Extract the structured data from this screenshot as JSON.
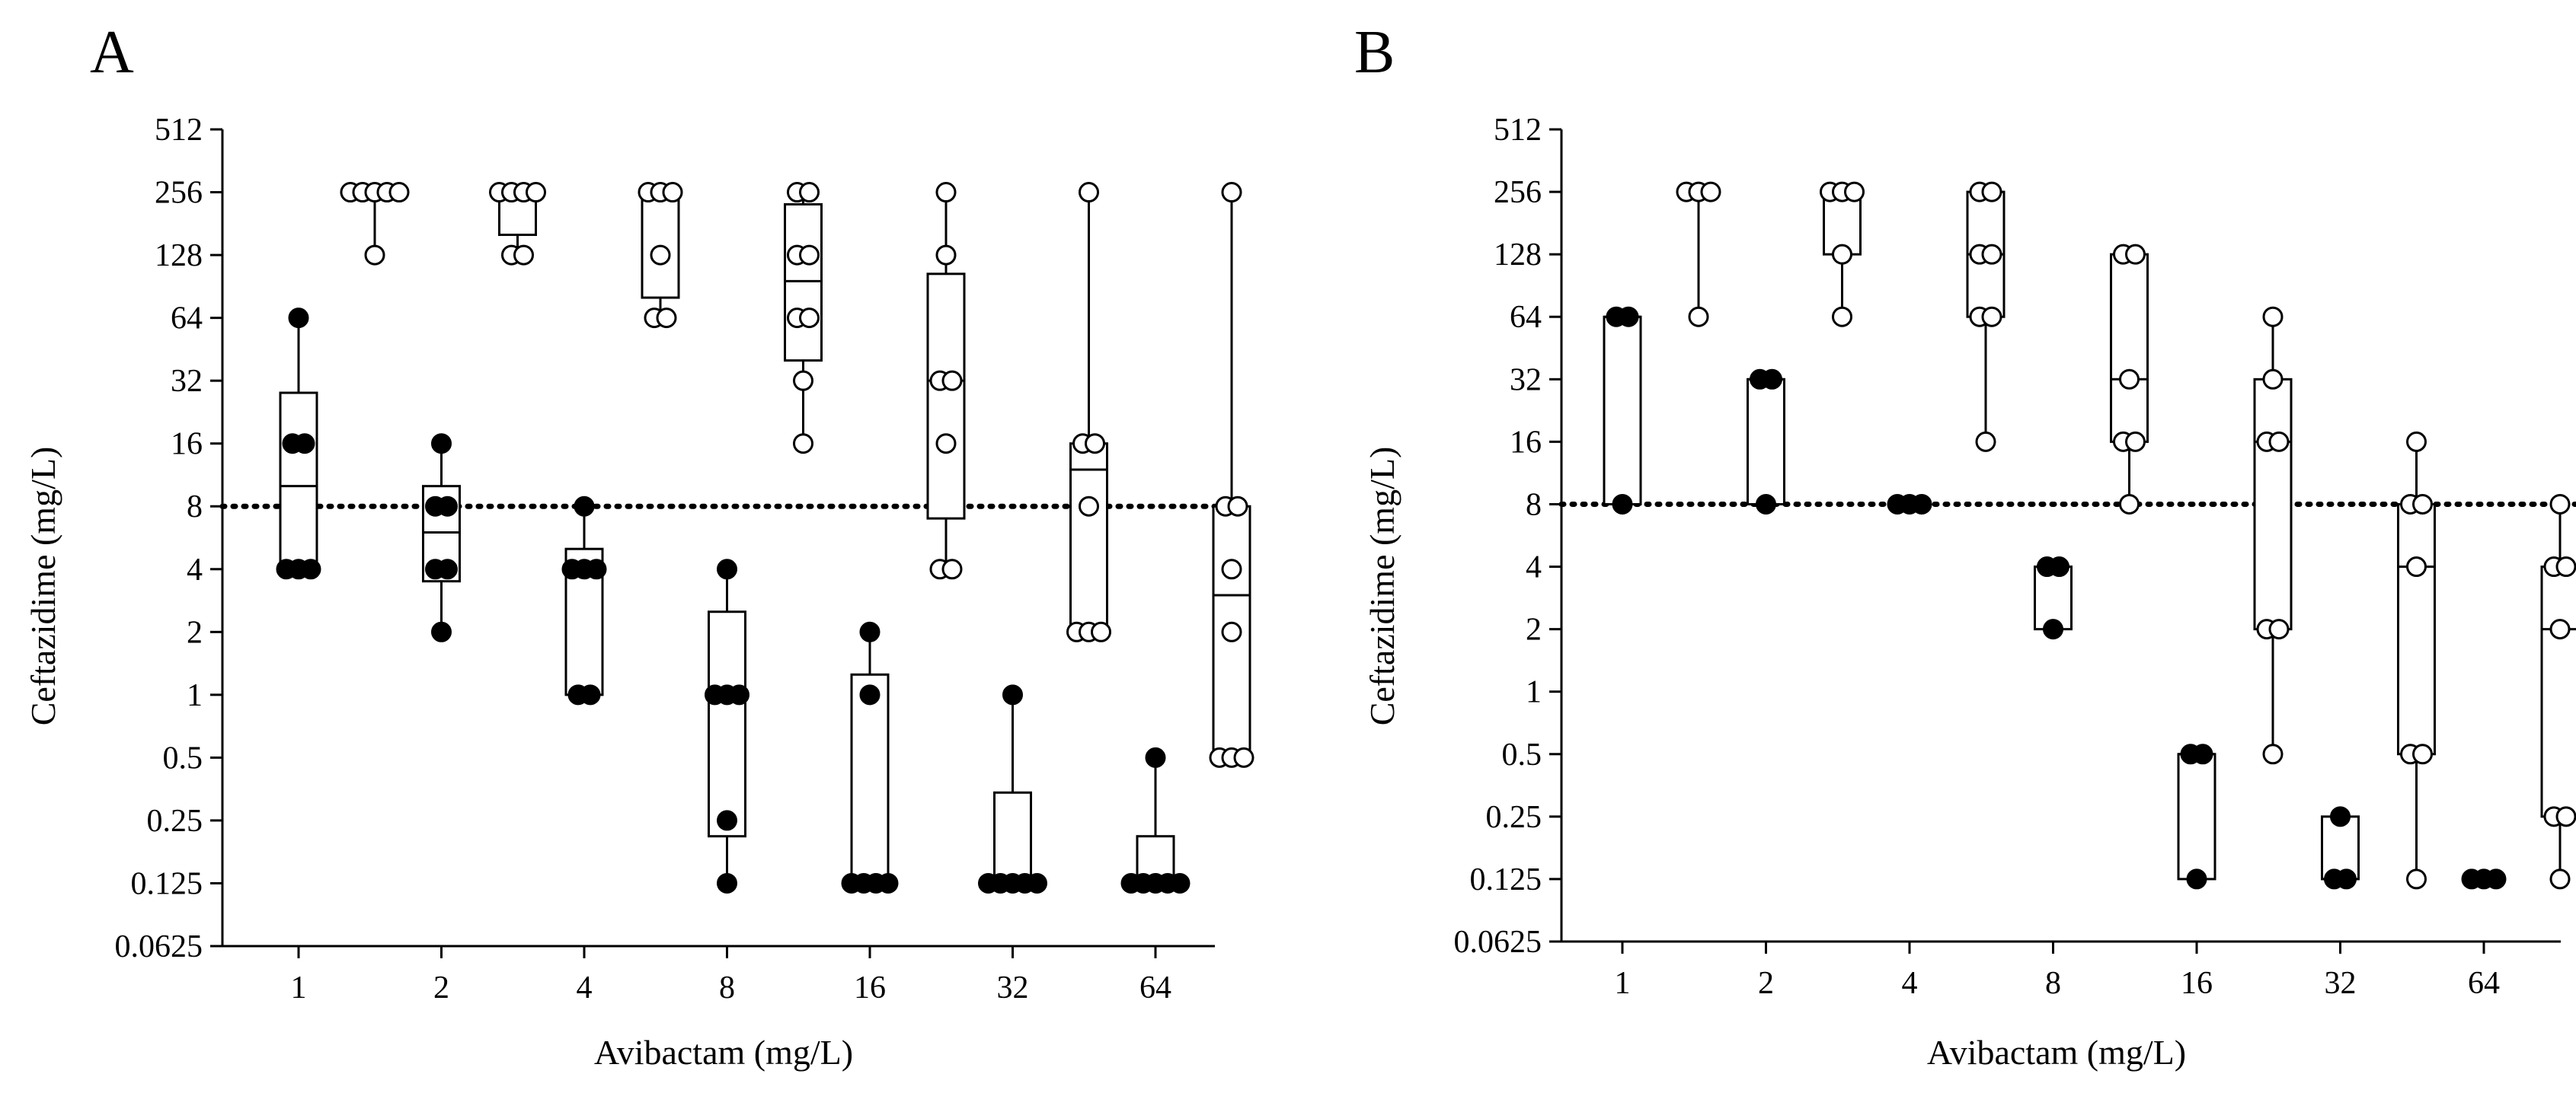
{
  "figure": {
    "dotted_line_value": 8,
    "colors": {
      "axis": "#000000",
      "filled_marker": "#000000",
      "open_marker": "#ffffff",
      "box": "#ffffff"
    }
  },
  "chart_data": [
    {
      "panel": "A",
      "type": "box",
      "xlabel": "Avibactam (mg/L)",
      "ylabel": "Ceftazidime (mg/L)",
      "y_scale": "log2",
      "ylim": [
        0.0625,
        512
      ],
      "y_ticks": [
        "512",
        "256",
        "128",
        "64",
        "32",
        "16",
        "8",
        "4",
        "2",
        "1",
        "0.5",
        "0.25",
        "0.125",
        "0.0625"
      ],
      "y_tick_values": [
        512,
        256,
        128,
        64,
        32,
        16,
        8,
        4,
        2,
        1,
        0.5,
        0.25,
        0.125,
        0.0625
      ],
      "categories": [
        "1",
        "2",
        "4",
        "8",
        "16",
        "32",
        "64"
      ],
      "reference_line": 8,
      "series": [
        {
          "name": "filled",
          "marker": "filled-circle",
          "groups": [
            {
              "category": "1",
              "box": {
                "min": 4,
                "q1": 4,
                "median": 10,
                "q3": 28,
                "max": 64
              },
              "points": [
                64,
                16,
                16,
                4,
                4,
                4
              ]
            },
            {
              "category": "2",
              "box": {
                "min": 2,
                "q1": 3.5,
                "median": 6,
                "q3": 10,
                "max": 16
              },
              "points": [
                16,
                8,
                8,
                4,
                4,
                2
              ]
            },
            {
              "category": "4",
              "box": {
                "min": 1,
                "q1": 1,
                "median": 4,
                "q3": 5,
                "max": 8
              },
              "points": [
                8,
                4,
                4,
                4,
                1,
                1
              ]
            },
            {
              "category": "8",
              "box": {
                "min": 0.125,
                "q1": 0.21,
                "median": 1,
                "q3": 2.5,
                "max": 4
              },
              "points": [
                4,
                1,
                1,
                1,
                0.25,
                0.125
              ]
            },
            {
              "category": "16",
              "box": {
                "min": 0.125,
                "q1": 0.125,
                "median": 0.125,
                "q3": 1.25,
                "max": 2
              },
              "points": [
                2,
                1,
                0.125,
                0.125,
                0.125,
                0.125
              ]
            },
            {
              "category": "32",
              "box": {
                "min": 0.125,
                "q1": 0.125,
                "median": 0.125,
                "q3": 0.34,
                "max": 1
              },
              "points": [
                1,
                0.125,
                0.125,
                0.125,
                0.125,
                0.125
              ]
            },
            {
              "category": "64",
              "box": {
                "min": 0.125,
                "q1": 0.125,
                "median": 0.125,
                "q3": 0.21,
                "max": 0.5
              },
              "points": [
                0.5,
                0.125,
                0.125,
                0.125,
                0.125,
                0.125
              ]
            }
          ]
        },
        {
          "name": "open",
          "marker": "open-circle",
          "groups": [
            {
              "category": "1",
              "box": {
                "min": 128,
                "q1": 256,
                "median": 256,
                "q3": 256,
                "max": 256
              },
              "points": [
                256,
                256,
                256,
                256,
                256,
                128
              ]
            },
            {
              "category": "2",
              "box": {
                "min": 128,
                "q1": 160,
                "median": 256,
                "q3": 256,
                "max": 256
              },
              "points": [
                256,
                256,
                256,
                256,
                128,
                128
              ]
            },
            {
              "category": "4",
              "box": {
                "min": 64,
                "q1": 80,
                "median": 256,
                "q3": 256,
                "max": 256
              },
              "points": [
                256,
                256,
                256,
                128,
                64,
                64
              ]
            },
            {
              "category": "8",
              "box": {
                "min": 16,
                "q1": 40,
                "median": 96,
                "q3": 224,
                "max": 256
              },
              "points": [
                256,
                256,
                128,
                128,
                64,
                64,
                32,
                16
              ]
            },
            {
              "category": "16",
              "box": {
                "min": 4,
                "q1": 7,
                "median": 32,
                "q3": 104,
                "max": 256
              },
              "points": [
                256,
                128,
                32,
                32,
                16,
                4,
                4
              ]
            },
            {
              "category": "32",
              "box": {
                "min": 2,
                "q1": 2,
                "median": 12,
                "q3": 16,
                "max": 256
              },
              "points": [
                256,
                16,
                16,
                8,
                2,
                2,
                2
              ]
            },
            {
              "category": "64",
              "box": {
                "min": 0.5,
                "q1": 0.5,
                "median": 3,
                "q3": 8,
                "max": 256
              },
              "points": [
                256,
                8,
                8,
                4,
                2,
                0.5,
                0.5,
                0.5
              ]
            }
          ]
        }
      ]
    },
    {
      "panel": "B",
      "type": "box",
      "xlabel": "Avibactam (mg/L)",
      "ylabel": "Ceftazidime (mg/L)",
      "y_scale": "log2",
      "ylim": [
        0.0625,
        512
      ],
      "y_ticks": [
        "512",
        "256",
        "128",
        "64",
        "32",
        "16",
        "8",
        "4",
        "2",
        "1",
        "0.5",
        "0.25",
        "0.125",
        "0.0625"
      ],
      "y_tick_values": [
        512,
        256,
        128,
        64,
        32,
        16,
        8,
        4,
        2,
        1,
        0.5,
        0.25,
        0.125,
        0.0625
      ],
      "categories": [
        "1",
        "2",
        "4",
        "8",
        "16",
        "32",
        "64"
      ],
      "reference_line": 8,
      "series": [
        {
          "name": "filled",
          "marker": "filled-circle",
          "groups": [
            {
              "category": "1",
              "box": {
                "min": 8,
                "q1": 8,
                "median": 64,
                "q3": 64,
                "max": 64
              },
              "points": [
                64,
                64,
                8
              ]
            },
            {
              "category": "2",
              "box": {
                "min": 8,
                "q1": 8,
                "median": 32,
                "q3": 32,
                "max": 32
              },
              "points": [
                32,
                32,
                8
              ]
            },
            {
              "category": "4",
              "box": {
                "min": 8,
                "q1": 8,
                "median": 8,
                "q3": 8,
                "max": 8
              },
              "points": [
                8,
                8,
                8
              ]
            },
            {
              "category": "8",
              "box": {
                "min": 2,
                "q1": 2,
                "median": 4,
                "q3": 4,
                "max": 4
              },
              "points": [
                4,
                4,
                2
              ]
            },
            {
              "category": "16",
              "box": {
                "min": 0.125,
                "q1": 0.125,
                "median": 0.5,
                "q3": 0.5,
                "max": 0.5
              },
              "points": [
                0.5,
                0.5,
                0.125
              ]
            },
            {
              "category": "32",
              "box": {
                "min": 0.125,
                "q1": 0.125,
                "median": 0.125,
                "q3": 0.25,
                "max": 0.25
              },
              "points": [
                0.25,
                0.125,
                0.125
              ]
            },
            {
              "category": "64",
              "box": {
                "min": 0.125,
                "q1": 0.125,
                "median": 0.125,
                "q3": 0.125,
                "max": 0.125
              },
              "points": [
                0.125,
                0.125,
                0.125
              ]
            }
          ]
        },
        {
          "name": "open",
          "marker": "open-circle",
          "groups": [
            {
              "category": "1",
              "box": {
                "min": 64,
                "q1": 256,
                "median": 256,
                "q3": 256,
                "max": 256
              },
              "points": [
                256,
                256,
                256,
                64
              ]
            },
            {
              "category": "2",
              "box": {
                "min": 64,
                "q1": 128,
                "median": 256,
                "q3": 256,
                "max": 256
              },
              "points": [
                256,
                256,
                256,
                128,
                64
              ]
            },
            {
              "category": "4",
              "box": {
                "min": 16,
                "q1": 64,
                "median": 128,
                "q3": 256,
                "max": 256
              },
              "points": [
                256,
                256,
                128,
                128,
                64,
                64,
                16
              ]
            },
            {
              "category": "8",
              "box": {
                "min": 8,
                "q1": 16,
                "median": 32,
                "q3": 128,
                "max": 128
              },
              "points": [
                128,
                128,
                32,
                16,
                16,
                8
              ]
            },
            {
              "category": "16",
              "box": {
                "min": 0.5,
                "q1": 2,
                "median": 16,
                "q3": 32,
                "max": 64
              },
              "points": [
                64,
                32,
                16,
                16,
                2,
                2,
                0.5
              ]
            },
            {
              "category": "32",
              "box": {
                "min": 0.125,
                "q1": 0.5,
                "median": 4,
                "q3": 8,
                "max": 16
              },
              "points": [
                16,
                8,
                8,
                4,
                0.5,
                0.5,
                0.125
              ]
            },
            {
              "category": "64",
              "box": {
                "min": 0.125,
                "q1": 0.25,
                "median": 2,
                "q3": 4,
                "max": 8
              },
              "points": [
                8,
                4,
                4,
                2,
                0.25,
                0.25,
                0.125
              ]
            }
          ]
        }
      ]
    }
  ]
}
